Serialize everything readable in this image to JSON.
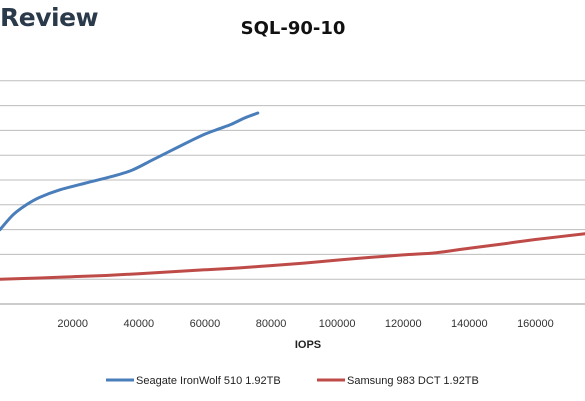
{
  "logo": {
    "text": "Review"
  },
  "chart_data": {
    "type": "line",
    "title": "SQL-90-10",
    "xlabel": "IOPS",
    "ylabel": "",
    "xlim": [
      -2000,
      175000
    ],
    "ylim": [
      0,
      10
    ],
    "grid": true,
    "legend_position": "bottom",
    "x_ticks": [
      20000,
      40000,
      60000,
      80000,
      100000,
      120000,
      140000,
      160000
    ],
    "x_tick_labels": [
      "20000",
      "40000",
      "60000",
      "80000",
      "100000",
      "120000",
      "140000",
      "160000"
    ],
    "series": [
      {
        "name": "Seagate IronWolf 510 1.92TB",
        "color": "#4a7ebb",
        "x": [
          -2000,
          2000,
          6000,
          10000,
          16000,
          24000,
          32000,
          38000,
          44000,
          50000,
          56000,
          60000,
          64000,
          68000,
          72000,
          76000
        ],
        "y": [
          3.0,
          3.6,
          4.0,
          4.3,
          4.6,
          4.88,
          5.15,
          5.4,
          5.8,
          6.2,
          6.6,
          6.85,
          7.05,
          7.25,
          7.5,
          7.7
        ]
      },
      {
        "name": "Samsung 983 DCT 1.92TB",
        "color": "#be4b48",
        "x": [
          -2000,
          10000,
          20000,
          30000,
          40000,
          50000,
          60000,
          70000,
          80000,
          90000,
          100000,
          110000,
          120000,
          130000,
          140000,
          150000,
          160000,
          175000
        ],
        "y": [
          1.0,
          1.05,
          1.1,
          1.15,
          1.22,
          1.3,
          1.38,
          1.45,
          1.55,
          1.65,
          1.77,
          1.88,
          1.98,
          2.07,
          2.25,
          2.42,
          2.6,
          2.83
        ]
      }
    ]
  }
}
